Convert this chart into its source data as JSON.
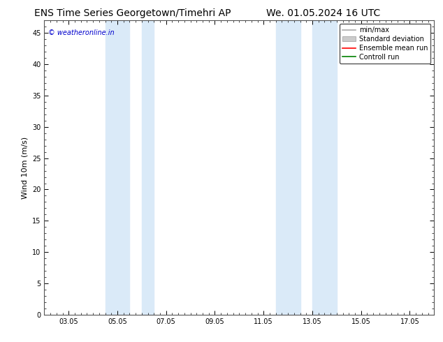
{
  "title_left": "ENS Time Series Georgetown/Timehri AP",
  "title_right": "We. 01.05.2024 16 UTC",
  "ylabel": "Wind 10m (m/s)",
  "watermark": "© weatheronline.in",
  "xtick_labels": [
    "03.05",
    "05.05",
    "07.05",
    "09.05",
    "11.05",
    "13.05",
    "15.05",
    "17.05"
  ],
  "xtick_positions": [
    1,
    3,
    5,
    7,
    9,
    11,
    13,
    15
  ],
  "ylim": [
    0,
    47
  ],
  "ytick_positions": [
    0,
    5,
    10,
    15,
    20,
    25,
    30,
    35,
    40,
    45
  ],
  "ytick_labels": [
    "0",
    "5",
    "10",
    "15",
    "20",
    "25",
    "30",
    "35",
    "40",
    "45"
  ],
  "shaded_bands": [
    {
      "x_start": 2.5,
      "x_end": 3.5
    },
    {
      "x_start": 4.0,
      "x_end": 4.5
    },
    {
      "x_start": 9.5,
      "x_end": 10.5
    },
    {
      "x_start": 11.0,
      "x_end": 12.0
    }
  ],
  "shaded_color": "#daeaf8",
  "background_color": "#ffffff",
  "plot_bg_color": "#ffffff",
  "legend_items": [
    {
      "label": "min/max",
      "color": "#aaaaaa",
      "lw": 1.2,
      "ls": "-"
    },
    {
      "label": "Standard deviation",
      "color": "#cccccc",
      "lw": 5,
      "ls": "-"
    },
    {
      "label": "Ensemble mean run",
      "color": "#ff0000",
      "lw": 1.2,
      "ls": "-"
    },
    {
      "label": "Controll run",
      "color": "#008000",
      "lw": 1.2,
      "ls": "-"
    }
  ],
  "title_fontsize": 10,
  "axis_fontsize": 8,
  "tick_fontsize": 7,
  "legend_fontsize": 7,
  "watermark_color": "#0000cc",
  "watermark_fontsize": 7,
  "xlim": [
    0,
    16
  ]
}
